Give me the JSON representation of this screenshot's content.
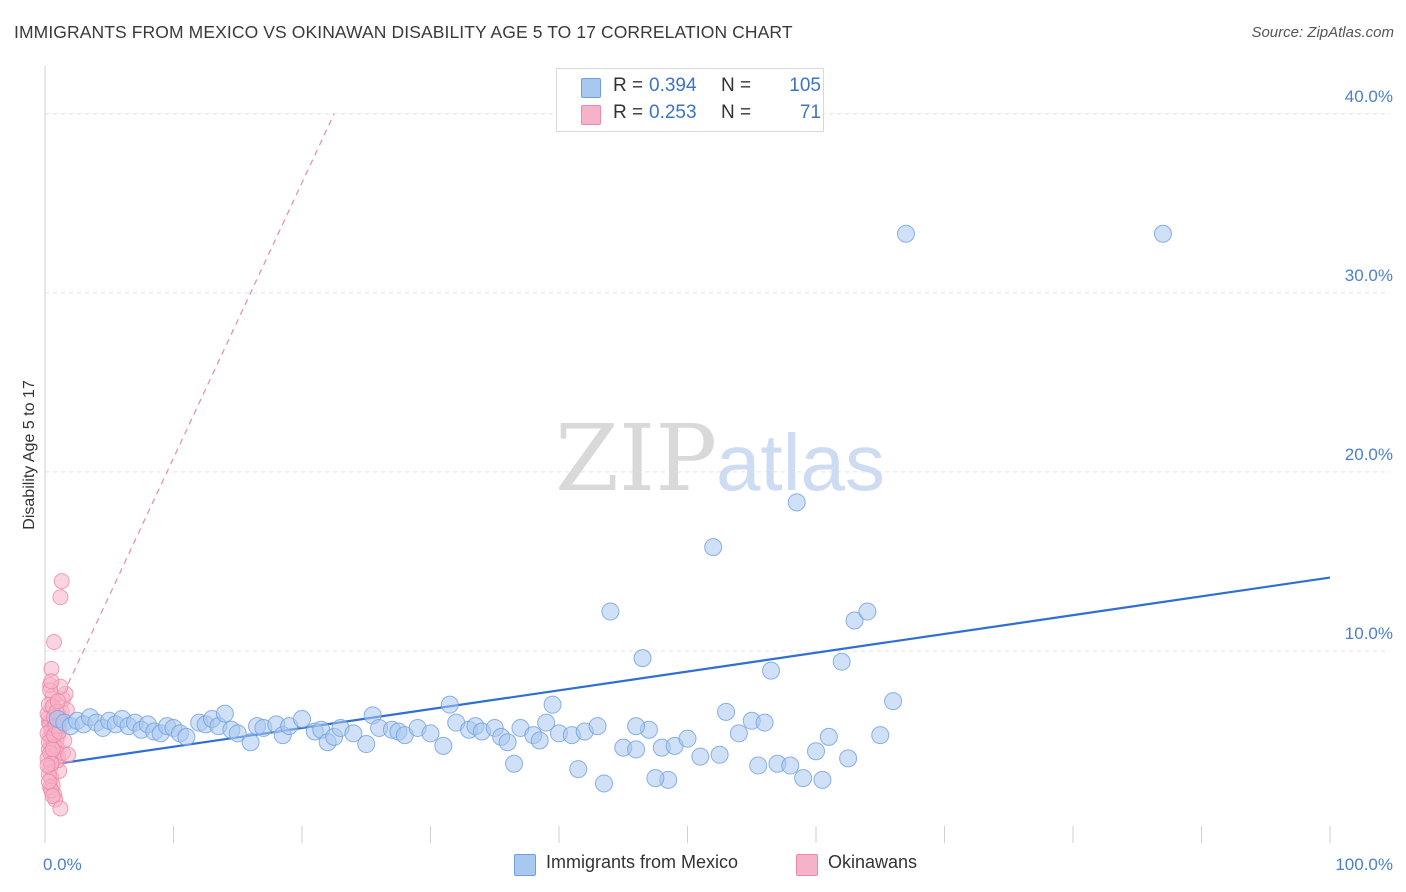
{
  "title": "IMMIGRANTS FROM MEXICO VS OKINAWAN DISABILITY AGE 5 TO 17 CORRELATION CHART",
  "source": "Source: ZipAtlas.com",
  "watermark": {
    "zip": "ZIP",
    "atlas": "atlas"
  },
  "colors": {
    "blue_fill": "#a9c8f0",
    "blue_stroke": "#6f9fe0",
    "blue_line": "#2f6fd0",
    "pink_fill": "#f6b2c8",
    "pink_stroke": "#ef87a8",
    "pink_line": "#e98aa8",
    "grid": "#e3e3e3",
    "tick_text": "#4a7fd4"
  },
  "stats_legend": [
    {
      "r_label": "R =",
      "r_value": "0.394",
      "n_label": "N =",
      "n_value": "105",
      "color": "blue"
    },
    {
      "r_label": "R =",
      "r_value": "0.253",
      "n_label": "N =",
      "n_value": "71",
      "color": "pink"
    }
  ],
  "chart_data": {
    "type": "scatter",
    "title": "IMMIGRANTS FROM MEXICO VS OKINAWAN DISABILITY AGE 5 TO 17 CORRELATION CHART",
    "xlabel": "",
    "ylabel": "Disability Age 5 to 17",
    "xlim": [
      0,
      100
    ],
    "ylim": [
      0,
      42
    ],
    "x_tick_labels": [
      "0.0%",
      "100.0%"
    ],
    "y_ticks": [
      10,
      20,
      30,
      40
    ],
    "y_tick_labels": [
      "10.0%",
      "20.0%",
      "30.0%",
      "40.0%"
    ],
    "grid": true,
    "series": [
      {
        "name": "Immigrants from Mexico",
        "color": "blue",
        "trend": {
          "x0": 0,
          "y0": 3.6,
          "x1": 100,
          "y1": 14.1,
          "style": "solid"
        },
        "points": [
          [
            1.0,
            6.2
          ],
          [
            1.5,
            6.0
          ],
          [
            2.0,
            5.8
          ],
          [
            2.5,
            6.1
          ],
          [
            3.0,
            5.9
          ],
          [
            3.5,
            6.3
          ],
          [
            4.0,
            6.0
          ],
          [
            4.5,
            5.7
          ],
          [
            5.0,
            6.1
          ],
          [
            5.5,
            5.9
          ],
          [
            6.0,
            6.2
          ],
          [
            6.5,
            5.8
          ],
          [
            7.0,
            6.0
          ],
          [
            7.5,
            5.6
          ],
          [
            8.0,
            5.9
          ],
          [
            8.5,
            5.5
          ],
          [
            9.0,
            5.4
          ],
          [
            9.5,
            5.8
          ],
          [
            10.0,
            5.7
          ],
          [
            10.5,
            5.4
          ],
          [
            11.0,
            5.2
          ],
          [
            12.0,
            6.0
          ],
          [
            12.5,
            5.9
          ],
          [
            13.0,
            6.2
          ],
          [
            13.5,
            5.8
          ],
          [
            14.0,
            6.5
          ],
          [
            14.5,
            5.6
          ],
          [
            15.0,
            5.4
          ],
          [
            16.0,
            4.9
          ],
          [
            16.5,
            5.8
          ],
          [
            17.0,
            5.7
          ],
          [
            18.0,
            5.9
          ],
          [
            18.5,
            5.3
          ],
          [
            19.0,
            5.8
          ],
          [
            20.0,
            6.2
          ],
          [
            21.0,
            5.5
          ],
          [
            21.5,
            5.6
          ],
          [
            22.0,
            4.9
          ],
          [
            22.5,
            5.2
          ],
          [
            23.0,
            5.7
          ],
          [
            24.0,
            5.4
          ],
          [
            25.0,
            4.8
          ],
          [
            25.5,
            6.4
          ],
          [
            26.0,
            5.7
          ],
          [
            27.0,
            5.6
          ],
          [
            27.5,
            5.5
          ],
          [
            28.0,
            5.3
          ],
          [
            29.0,
            5.7
          ],
          [
            30.0,
            5.4
          ],
          [
            31.0,
            4.7
          ],
          [
            31.5,
            7.0
          ],
          [
            32.0,
            6.0
          ],
          [
            33.0,
            5.6
          ],
          [
            33.5,
            5.8
          ],
          [
            34.0,
            5.5
          ],
          [
            35.0,
            5.7
          ],
          [
            35.5,
            5.2
          ],
          [
            36.0,
            4.9
          ],
          [
            37.0,
            5.7
          ],
          [
            38.0,
            5.3
          ],
          [
            38.5,
            5.0
          ],
          [
            39.0,
            6.0
          ],
          [
            39.5,
            7.0
          ],
          [
            40.0,
            5.4
          ],
          [
            41.0,
            5.3
          ],
          [
            42.0,
            5.5
          ],
          [
            43.0,
            5.8
          ],
          [
            44.0,
            12.2
          ],
          [
            45.0,
            4.6
          ],
          [
            46.0,
            4.5
          ],
          [
            46.5,
            9.6
          ],
          [
            47.0,
            5.6
          ],
          [
            48.0,
            4.6
          ],
          [
            49.0,
            4.7
          ],
          [
            50.0,
            5.1
          ],
          [
            51.0,
            4.1
          ],
          [
            52.0,
            15.8
          ],
          [
            53.0,
            6.6
          ],
          [
            54.0,
            5.4
          ],
          [
            55.0,
            6.1
          ],
          [
            56.0,
            6.0
          ],
          [
            57.0,
            3.7
          ],
          [
            58.0,
            3.6
          ],
          [
            59.0,
            2.9
          ],
          [
            60.0,
            4.4
          ],
          [
            61.0,
            5.2
          ],
          [
            62.0,
            9.4
          ],
          [
            63.0,
            11.7
          ],
          [
            64.0,
            12.2
          ],
          [
            65.0,
            5.3
          ],
          [
            66.0,
            7.2
          ],
          [
            67.0,
            33.3
          ],
          [
            36.5,
            3.7
          ],
          [
            43.5,
            2.6
          ],
          [
            48.5,
            2.8
          ],
          [
            58.5,
            18.3
          ],
          [
            56.5,
            8.9
          ],
          [
            87.0,
            33.3
          ],
          [
            41.5,
            3.4
          ],
          [
            47.5,
            2.9
          ],
          [
            55.5,
            3.6
          ],
          [
            52.5,
            4.2
          ],
          [
            60.5,
            2.8
          ],
          [
            62.5,
            4.0
          ],
          [
            46.0,
            5.8
          ]
        ]
      },
      {
        "name": "Okinawans",
        "color": "pink",
        "trend": {
          "x0": 0,
          "y0": 5.4,
          "x1": 22.5,
          "y1": 40.0,
          "style": "dashed"
        },
        "points": [
          [
            0.3,
            6.0
          ],
          [
            0.5,
            5.5
          ],
          [
            0.6,
            6.8
          ],
          [
            0.4,
            5.2
          ],
          [
            0.8,
            6.2
          ],
          [
            0.5,
            4.8
          ],
          [
            0.7,
            5.7
          ],
          [
            0.3,
            4.5
          ],
          [
            0.9,
            5.9
          ],
          [
            0.6,
            7.5
          ],
          [
            0.4,
            8.1
          ],
          [
            0.5,
            9.0
          ],
          [
            0.7,
            10.5
          ],
          [
            1.2,
            13.0
          ],
          [
            1.3,
            13.9
          ],
          [
            0.8,
            4.2
          ],
          [
            0.6,
            3.8
          ],
          [
            0.4,
            3.5
          ],
          [
            0.5,
            2.9
          ],
          [
            0.6,
            2.5
          ],
          [
            0.7,
            2.0
          ],
          [
            0.8,
            1.7
          ],
          [
            1.2,
            1.2
          ],
          [
            0.9,
            4.4
          ],
          [
            1.0,
            5.3
          ],
          [
            1.1,
            6.4
          ],
          [
            1.3,
            6.6
          ],
          [
            1.4,
            7.3
          ],
          [
            1.6,
            7.6
          ],
          [
            1.2,
            8.0
          ],
          [
            0.3,
            6.3
          ],
          [
            0.4,
            5.9
          ],
          [
            0.5,
            5.6
          ],
          [
            0.6,
            5.1
          ],
          [
            0.7,
            4.7
          ],
          [
            0.8,
            6.1
          ],
          [
            0.9,
            5.0
          ],
          [
            1.0,
            4.1
          ],
          [
            1.1,
            3.3
          ],
          [
            0.3,
            3.1
          ],
          [
            0.4,
            2.4
          ],
          [
            0.5,
            2.2
          ],
          [
            0.6,
            1.9
          ],
          [
            0.2,
            5.4
          ],
          [
            0.2,
            6.5
          ],
          [
            0.3,
            7.0
          ],
          [
            0.4,
            7.8
          ],
          [
            0.5,
            8.3
          ],
          [
            0.6,
            6.9
          ],
          [
            0.7,
            6.3
          ],
          [
            0.8,
            5.4
          ],
          [
            0.9,
            4.6
          ],
          [
            1.0,
            3.9
          ],
          [
            1.1,
            5.8
          ],
          [
            1.2,
            6.1
          ],
          [
            1.4,
            4.3
          ],
          [
            1.5,
            5.0
          ],
          [
            1.7,
            6.7
          ],
          [
            1.8,
            4.2
          ],
          [
            0.2,
            4.0
          ],
          [
            0.3,
            4.9
          ],
          [
            0.4,
            4.3
          ],
          [
            0.5,
            3.7
          ],
          [
            0.6,
            4.5
          ],
          [
            0.7,
            5.3
          ],
          [
            0.8,
            5.8
          ],
          [
            0.9,
            6.6
          ],
          [
            1.0,
            7.2
          ],
          [
            1.1,
            5.5
          ],
          [
            0.2,
            3.6
          ],
          [
            0.3,
            2.7
          ]
        ]
      }
    ],
    "legend": [
      "Immigrants from Mexico",
      "Okinawans"
    ],
    "legend_position": "bottom-center"
  }
}
